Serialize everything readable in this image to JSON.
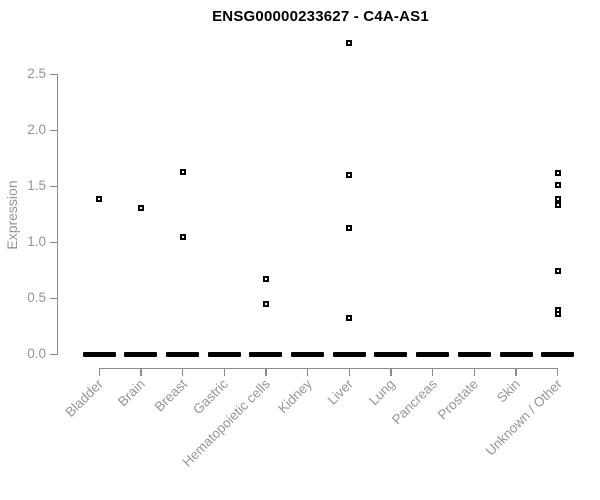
{
  "title": "ENSG00000233627 - C4A-AS1",
  "colors": {
    "axis_line": "#8c8c8c",
    "axis_text": "#969696",
    "point": "#000000",
    "title_text": "#000000",
    "background": "#ffffff"
  },
  "chart_data": {
    "type": "scatter",
    "title": "ENSG00000233627 - C4A-AS1",
    "xlabel": "",
    "ylabel": "Expression",
    "ylim": [
      0,
      2.5
    ],
    "yticks": [
      "0.0",
      "0.5",
      "1.0",
      "1.5",
      "2.0",
      "2.5"
    ],
    "grid": false,
    "legend": "none",
    "marker": "small open black square",
    "zero_cluster_note": "every category shows a dense cluster of overlapping points at expression 0, drawn as a thick black dash",
    "categories": [
      {
        "label": "Bladder",
        "values": [
          1.39
        ],
        "zero_cluster": true
      },
      {
        "label": "Brain",
        "values": [
          1.31
        ],
        "zero_cluster": true
      },
      {
        "label": "Breast",
        "values": [
          1.63,
          1.05
        ],
        "zero_cluster": true
      },
      {
        "label": "Gastric",
        "values": [],
        "zero_cluster": true
      },
      {
        "label": "Hematopoietic cells",
        "values": [
          0.67,
          0.45
        ],
        "zero_cluster": true
      },
      {
        "label": "Kidney",
        "values": [],
        "zero_cluster": true
      },
      {
        "label": "Liver",
        "values": [
          2.78,
          1.6,
          1.13,
          0.32
        ],
        "zero_cluster": true
      },
      {
        "label": "Lung",
        "values": [],
        "zero_cluster": true
      },
      {
        "label": "Pancreas",
        "values": [],
        "zero_cluster": true
      },
      {
        "label": "Prostate",
        "values": [],
        "zero_cluster": true
      },
      {
        "label": "Skin",
        "values": [],
        "zero_cluster": true
      },
      {
        "label": "Unknown / Other",
        "values": [
          1.62,
          1.51,
          1.39,
          1.33,
          0.74,
          0.4,
          0.36
        ],
        "zero_cluster": true
      }
    ]
  }
}
